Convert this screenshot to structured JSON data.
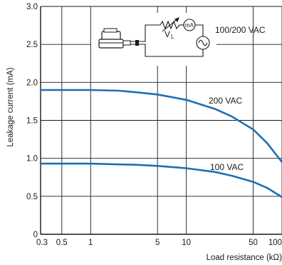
{
  "chart_data": {
    "type": "line",
    "xlabel": "Load resistance (kΩ)",
    "ylabel": "Leakage current (mA)",
    "x_scale": "log",
    "xlim": [
      0.3,
      100
    ],
    "ylim": [
      0,
      3.0
    ],
    "x_ticks": [
      0.3,
      0.5,
      1,
      5,
      10,
      50,
      100
    ],
    "x_tick_labels": [
      "0.3",
      "0.5",
      "1",
      "5",
      "10",
      "50",
      "100"
    ],
    "y_ticks": [
      0,
      0.5,
      1.0,
      1.5,
      2.0,
      2.5,
      3.0
    ],
    "y_tick_labels": [
      "0",
      "0.5",
      "1.0",
      "1.5",
      "2.0",
      "2.5",
      "3.0"
    ],
    "grid": true,
    "line_color": "#1f6fb2",
    "series": [
      {
        "name": "200 VAC",
        "x": [
          0.3,
          0.5,
          1,
          2,
          3,
          5,
          10,
          20,
          30,
          50,
          70,
          100
        ],
        "y": [
          1.9,
          1.9,
          1.9,
          1.89,
          1.87,
          1.84,
          1.77,
          1.65,
          1.55,
          1.38,
          1.2,
          0.95
        ]
      },
      {
        "name": "100 VAC",
        "x": [
          0.3,
          0.5,
          1,
          2,
          3,
          5,
          10,
          20,
          30,
          50,
          70,
          100
        ],
        "y": [
          0.93,
          0.93,
          0.93,
          0.92,
          0.915,
          0.9,
          0.87,
          0.82,
          0.77,
          0.69,
          0.61,
          0.49
        ]
      }
    ],
    "inset": {
      "resistor_label": "V",
      "resistor_label_sub": "L",
      "meter_label": "mA",
      "supply_label": "100/200 VAC"
    }
  }
}
